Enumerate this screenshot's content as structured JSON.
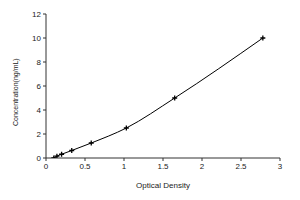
{
  "chart_data": {
    "type": "line",
    "x_label": "Optical Density",
    "y_label": "Concentration(ng/mL)",
    "x": [
      0.1,
      0.14,
      0.2,
      0.33,
      0.58,
      1.03,
      1.65,
      2.78
    ],
    "values": [
      0,
      0.156,
      0.312,
      0.625,
      1.25,
      2.5,
      5,
      10
    ],
    "color": "#000000",
    "marker": "plus",
    "xlim": [
      0,
      3
    ],
    "xticks": [
      0,
      0.5,
      1,
      1.5,
      2,
      2.5,
      3
    ],
    "ylim": [
      0,
      12
    ],
    "yticks": [
      0,
      2,
      4,
      6,
      8,
      10,
      12
    ],
    "grid": false
  }
}
